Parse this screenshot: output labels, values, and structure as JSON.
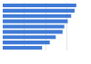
{
  "chart_data": {
    "type": "bar",
    "orientation": "horizontal",
    "categories": [
      null,
      null,
      null,
      null,
      null,
      null,
      null,
      null,
      null
    ],
    "values": [
      86,
      84,
      80,
      76,
      72,
      70,
      62,
      55,
      46
    ],
    "color": "#3f7ad6",
    "xlim": [
      0,
      100
    ],
    "xticks": [
      0,
      25,
      50,
      75,
      100
    ],
    "grid": true,
    "tick_labels": false
  }
}
